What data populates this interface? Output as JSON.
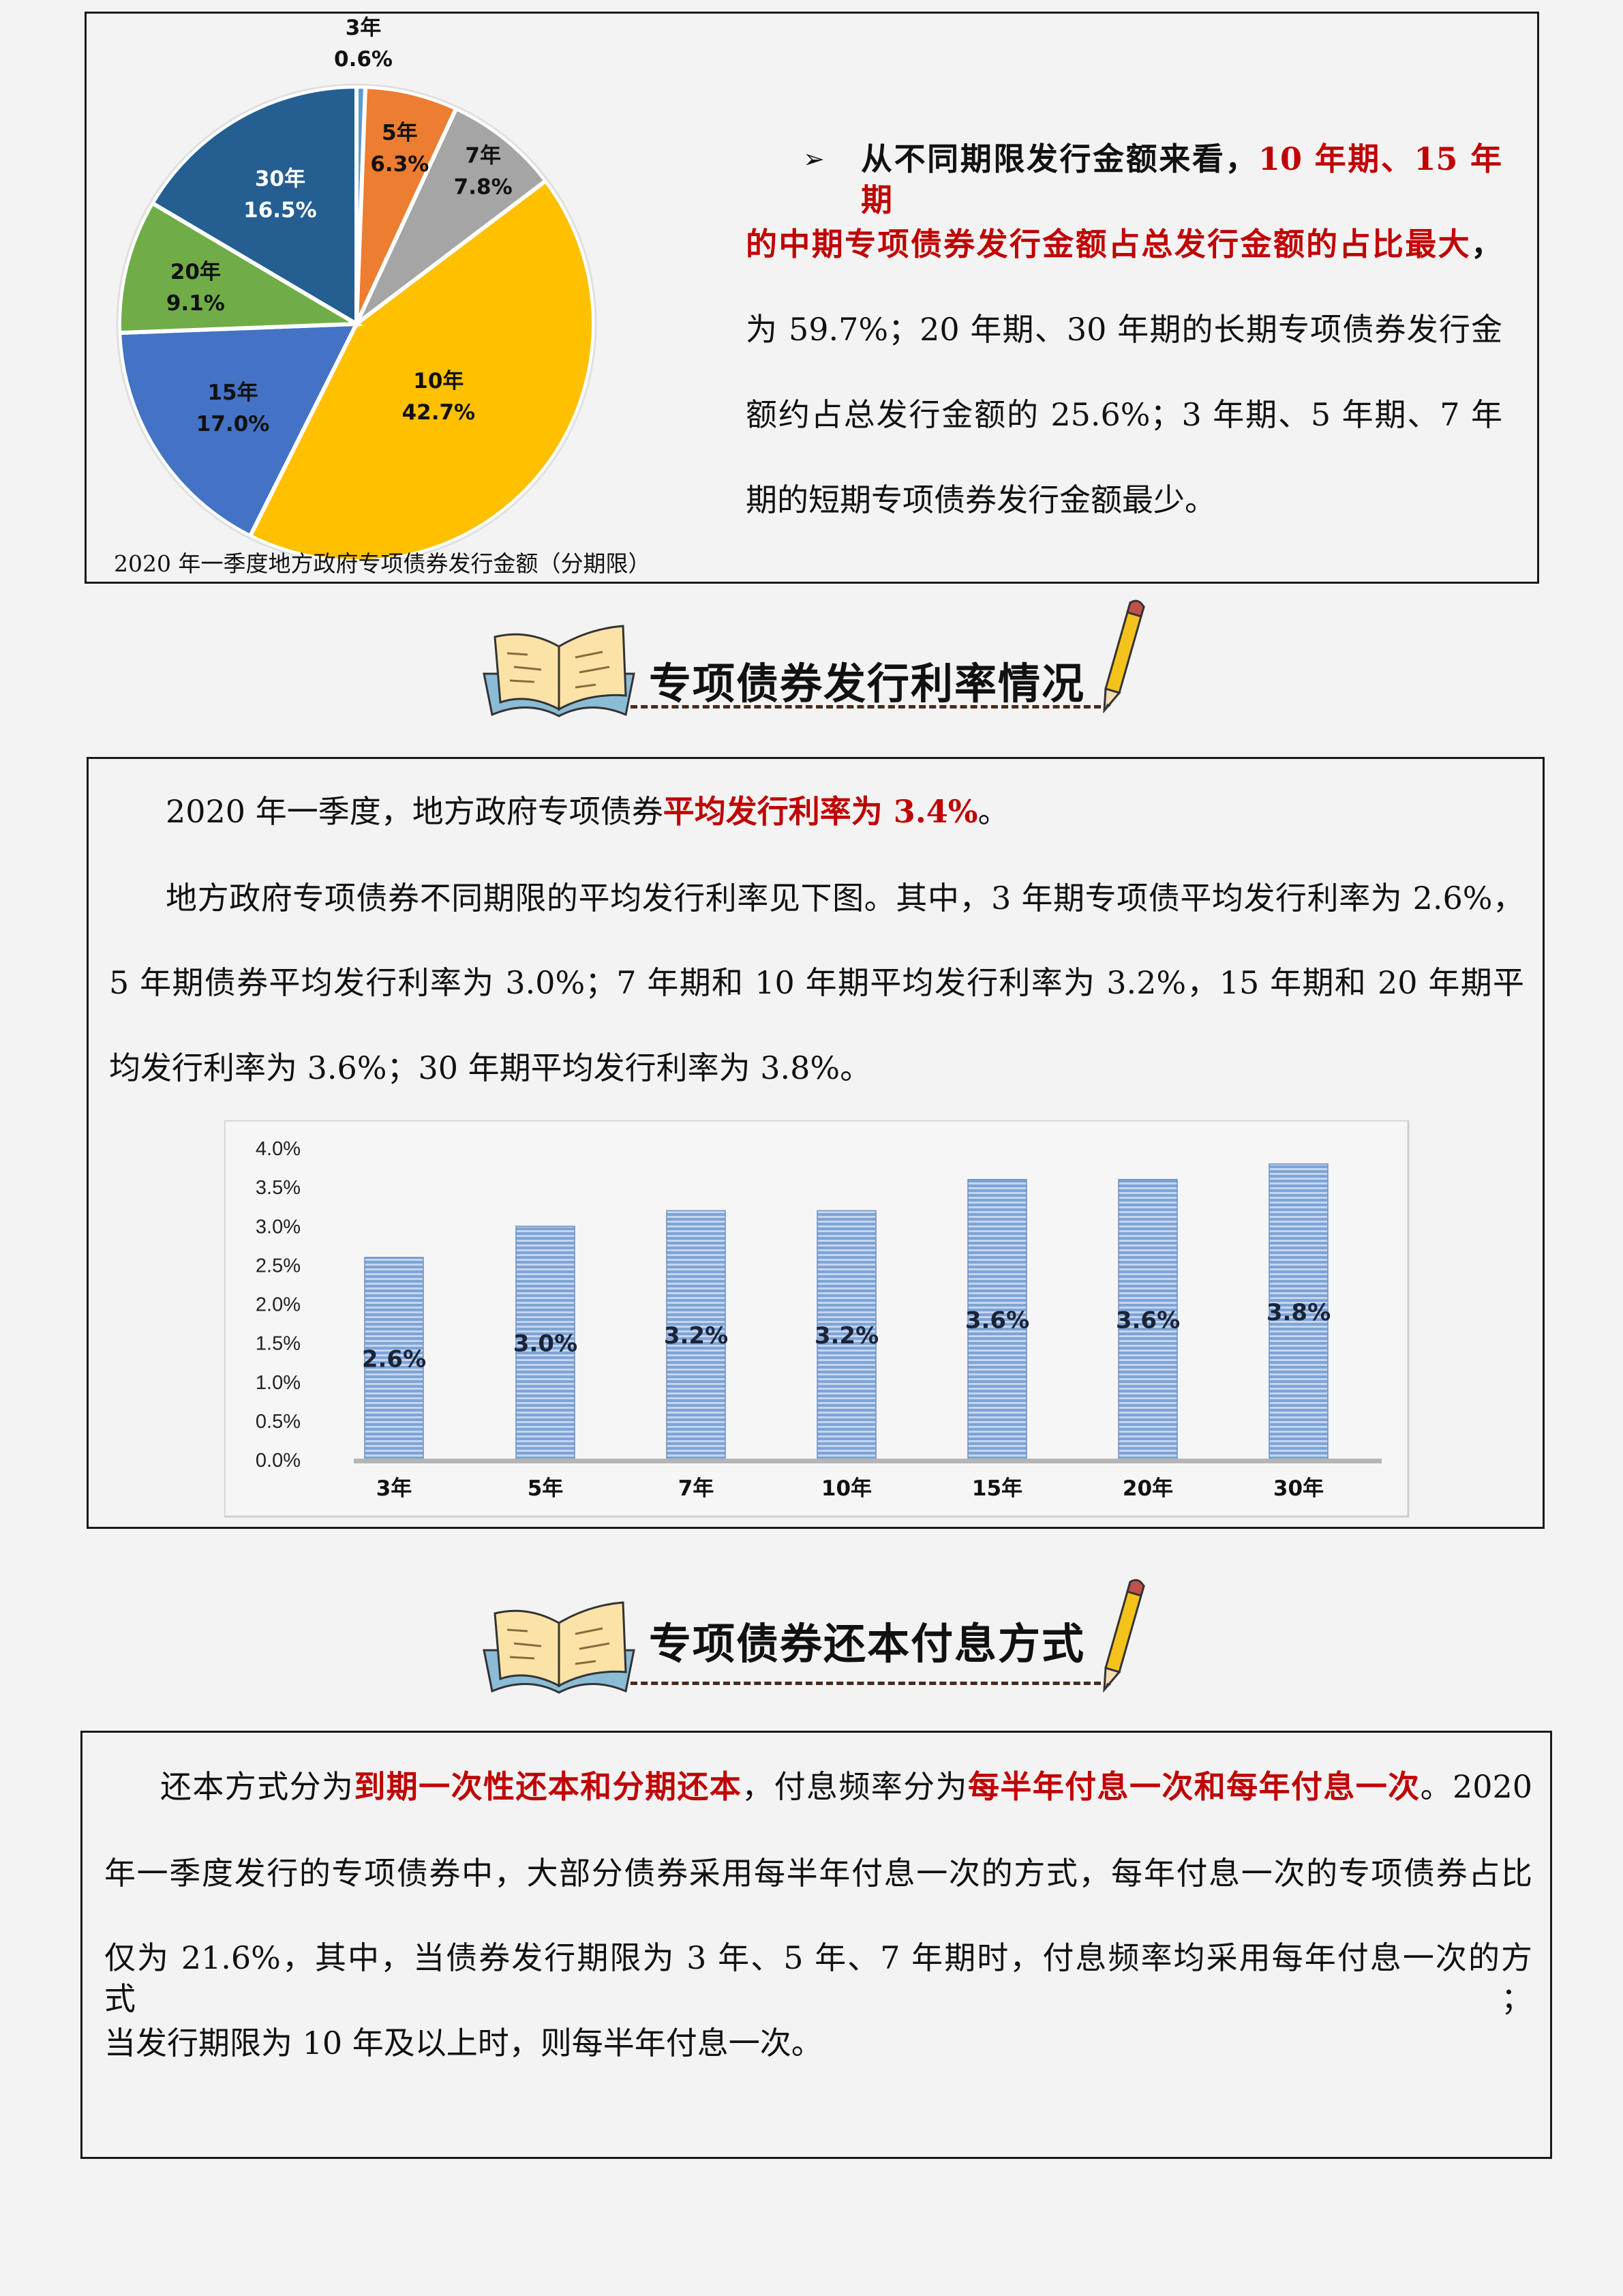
{
  "colors": {
    "accent_red": "#c00000",
    "bar_fill": "#8fb0de",
    "background": "#f3f3f3"
  },
  "section1": {
    "pie_caption": "2020 年一季度地方政府专项债券发行金额（分期限）",
    "lines": [
      [
        {
          "t": "从不同期限发行金额来看，",
          "s": "b"
        },
        {
          "t": "10 年期、15 年期",
          "s": "red"
        }
      ],
      [
        {
          "t": "的中期专项债券发行金额占总发行金额的占比最大",
          "s": "red"
        },
        {
          "t": "，",
          "s": "b"
        }
      ],
      [
        {
          "t": "为 59.7%；20 年期、30 年期的长期专项债券发行金",
          "s": ""
        }
      ],
      [
        {
          "t": "额约占总发行金额的 25.6%；3 年期、5 年期、7 年",
          "s": ""
        }
      ],
      [
        {
          "t": "期的短期专项债券发行金额最少。",
          "s": ""
        }
      ]
    ],
    "bullet_icon": "arrowhead-bullet-icon"
  },
  "header2": {
    "title": "专项债券发行利率情况",
    "icons": [
      "open-book-icon",
      "pencil-icon"
    ]
  },
  "section2": {
    "lines": [
      [
        {
          "t": "2020 年一季度，地方政府专项债券",
          "s": ""
        },
        {
          "t": "平均发行利率为 3.4%",
          "s": "red"
        },
        {
          "t": "。",
          "s": ""
        }
      ],
      [
        {
          "t": "地方政府专项债券不同期限的平均发行利率见下图。其中，3 年期专项债平均发行利率为 2.6%，",
          "s": ""
        }
      ],
      [
        {
          "t": "5 年期债券平均发行利率为 3.0%；7 年期和 10 年期平均发行利率为 3.2%，15 年期和 20 年期平",
          "s": ""
        }
      ],
      [
        {
          "t": "均发行利率为 3.6%；30 年期平均发行利率为 3.8%。",
          "s": ""
        }
      ]
    ]
  },
  "header3": {
    "title": "专项债券还本付息方式",
    "icons": [
      "open-book-icon",
      "pencil-icon"
    ]
  },
  "section3": {
    "lines": [
      [
        {
          "t": "还本方式分为",
          "s": ""
        },
        {
          "t": "到期一次性还本和分期还本",
          "s": "red"
        },
        {
          "t": "，付息频率分为",
          "s": ""
        },
        {
          "t": "每半年付息一次和每年付息一次",
          "s": "red"
        },
        {
          "t": "。2020",
          "s": ""
        }
      ],
      [
        {
          "t": "年一季度发行的专项债券中，大部分债券采用每半年付息一次的方式，每年付息一次的专项债券占比",
          "s": ""
        }
      ],
      [
        {
          "t": "仅为 21.6%，其中，当债券发行期限为 3 年、5 年、7 年期时，付息频率均采用每年付息一次的方式；",
          "s": ""
        }
      ],
      [
        {
          "t": "当发行期限为 10 年及以上时，则每半年付息一次。",
          "s": ""
        }
      ]
    ]
  },
  "chart_data": [
    {
      "type": "pie",
      "title": "2020 年一季度地方政府专项债券发行金额（分期限）",
      "categories": [
        "3年",
        "5年",
        "7年",
        "10年",
        "15年",
        "20年",
        "30年"
      ],
      "values": [
        0.6,
        6.3,
        7.8,
        42.7,
        17.0,
        9.1,
        16.5
      ],
      "labels": [
        "0.6%",
        "6.3%",
        "7.8%",
        "42.7%",
        "17.0%",
        "9.1%",
        "16.5%"
      ],
      "colors": [
        "#5b9bd5",
        "#ed7d31",
        "#a5a5a5",
        "#ffc000",
        "#4472c4",
        "#70ad47",
        "#255e91"
      ],
      "start": "top",
      "direction": "clockwise"
    },
    {
      "type": "bar",
      "categories": [
        "3年",
        "5年",
        "7年",
        "10年",
        "15年",
        "20年",
        "30年"
      ],
      "values": [
        2.6,
        3.0,
        3.2,
        3.2,
        3.6,
        3.6,
        3.8
      ],
      "data_labels": [
        "2.6%",
        "3.0%",
        "3.2%",
        "3.2%",
        "3.6%",
        "3.6%",
        "3.8%"
      ],
      "yticks": [
        "0.0%",
        "0.5%",
        "1.0%",
        "1.5%",
        "2.0%",
        "2.5%",
        "3.0%",
        "3.5%",
        "4.0%"
      ],
      "ylim": [
        0,
        4.0
      ],
      "grid": false,
      "legend": "none"
    }
  ]
}
